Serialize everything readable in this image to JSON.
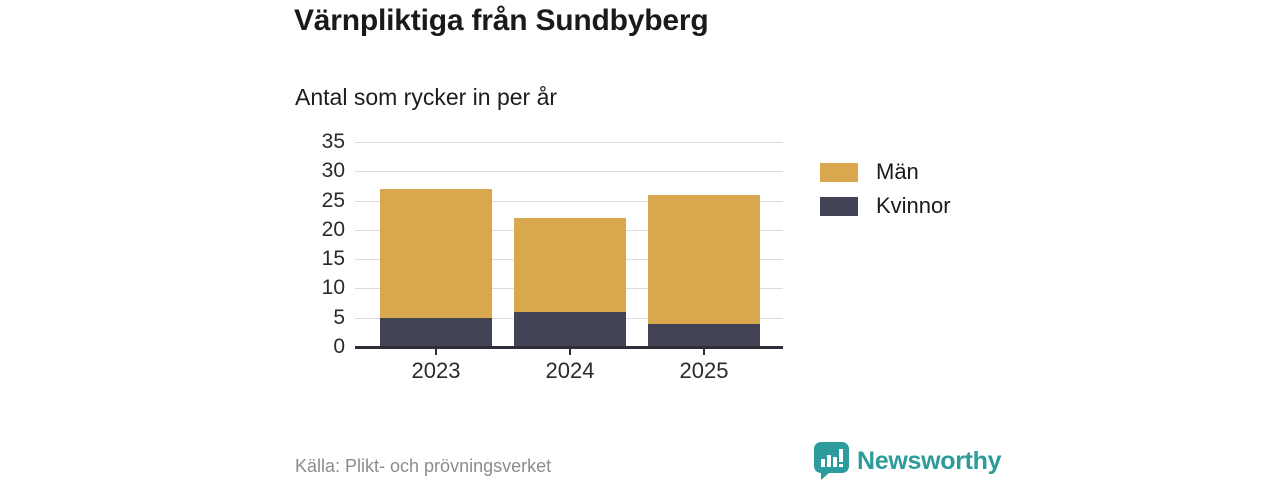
{
  "header": {
    "title": "Värnpliktiga från Sundbyberg",
    "subtitle": "Antal som rycker in per år"
  },
  "chart_data": {
    "type": "bar",
    "stacked": true,
    "title": "Värnpliktiga från Sundbyberg",
    "subtitle": "Antal som rycker in per år",
    "categories": [
      "2023",
      "2024",
      "2025"
    ],
    "series": [
      {
        "name": "Män",
        "color": "#d9a84e",
        "values": [
          22,
          16,
          22
        ]
      },
      {
        "name": "Kvinnor",
        "color": "#434356",
        "values": [
          5,
          6,
          4
        ]
      }
    ],
    "stack_order_bottom_to_top": [
      "Kvinnor",
      "Män"
    ],
    "totals": [
      27,
      22,
      26
    ],
    "xlabel": "",
    "ylabel": "",
    "ylim": [
      0,
      35
    ],
    "yticks": [
      0,
      5,
      10,
      15,
      20,
      25,
      30,
      35
    ],
    "grid": true,
    "legend_position": "right"
  },
  "footer": {
    "source": "Källa: Plikt- och prövningsverket",
    "brand": "Newsworthy",
    "brand_color": "#2d9b9b"
  }
}
